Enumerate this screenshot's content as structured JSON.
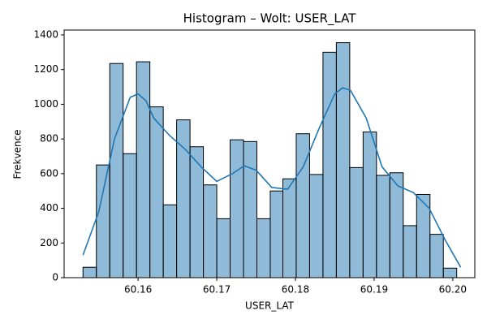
{
  "chart_data": {
    "type": "histogram",
    "title": "Histogram – Wolt: USER_LAT",
    "x_label": "USER_LAT",
    "y_label": "Frekvence",
    "bins": [
      60.153,
      60.1547,
      60.1564,
      60.1581,
      60.1598,
      60.1615,
      60.1632,
      60.1649,
      60.1666,
      60.1683,
      60.17,
      60.1717,
      60.1734,
      60.1751,
      60.1768,
      60.1784,
      60.1801,
      60.1818,
      60.1835,
      60.1852,
      60.1869,
      60.1886,
      60.1903,
      60.192,
      60.1937,
      60.1954,
      60.1971,
      60.1988,
      60.2005
    ],
    "values": [
      60,
      650,
      1235,
      715,
      1245,
      985,
      420,
      910,
      755,
      535,
      340,
      795,
      785,
      340,
      500,
      570,
      830,
      595,
      1300,
      1355,
      635,
      840,
      590,
      605,
      300,
      480,
      250,
      55
    ],
    "color": "#1f77b4",
    "kde": {
      "color": "#1f77b4",
      "x": [
        60.153,
        60.155,
        60.157,
        60.159,
        60.16,
        60.161,
        60.162,
        60.164,
        60.166,
        60.168,
        60.17,
        60.172,
        60.1735,
        60.175,
        60.177,
        60.179,
        60.181,
        60.183,
        60.185,
        60.186,
        60.187,
        60.189,
        60.191,
        60.193,
        60.195,
        60.197,
        60.199,
        60.201
      ],
      "values": [
        130,
        380,
        800,
        1040,
        1060,
        1020,
        920,
        820,
        740,
        640,
        555,
        600,
        645,
        620,
        520,
        510,
        640,
        860,
        1060,
        1095,
        1080,
        920,
        640,
        530,
        490,
        400,
        220,
        60
      ]
    },
    "xlim": [
      60.1506,
      60.2028
    ],
    "ylim": [
      0,
      1428
    ],
    "xticks": [
      60.16,
      60.17,
      60.18,
      60.19,
      {
        "value": 60.2,
        "label": "60.20"
      }
    ],
    "yticks": [
      0,
      200,
      400,
      600,
      800,
      1000,
      1200,
      1400
    ]
  }
}
